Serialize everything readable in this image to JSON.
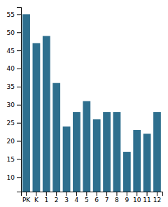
{
  "chart_data": {
    "type": "bar",
    "categories": [
      "PK",
      "K",
      "1",
      "2",
      "3",
      "4",
      "5",
      "6",
      "7",
      "8",
      "9",
      "10",
      "11",
      "12"
    ],
    "values": [
      55,
      47,
      49,
      36,
      24,
      28,
      31,
      26,
      28,
      28,
      17,
      23,
      22,
      28
    ],
    "color": "#2e6f8e",
    "ylim": [
      6,
      57
    ],
    "yticks": [
      10,
      15,
      20,
      25,
      30,
      35,
      40,
      45,
      50,
      55
    ],
    "grid": false
  }
}
